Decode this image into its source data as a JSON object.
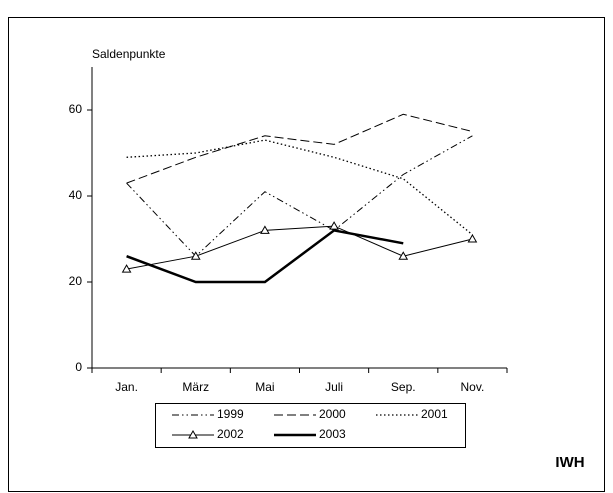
{
  "chart_data": {
    "type": "line",
    "y_label": "Saldenpunkte",
    "categories": [
      "Jan.",
      "März",
      "Mai",
      "Juli",
      "Sep.",
      "Nov."
    ],
    "ylim": [
      0,
      70
    ],
    "yticks": [
      0,
      20,
      40,
      60
    ],
    "series": [
      {
        "name": "1999",
        "color": "#000000",
        "line_style": "dash-dot-dot",
        "values": [
          43,
          26,
          41,
          32,
          45,
          54
        ]
      },
      {
        "name": "2000",
        "color": "#000000",
        "line_style": "dashed",
        "values": [
          43,
          49,
          54,
          52,
          59,
          55
        ]
      },
      {
        "name": "2001",
        "color": "#000000",
        "line_style": "dotted",
        "values": [
          49,
          50,
          53,
          49,
          44,
          31
        ]
      },
      {
        "name": "2002",
        "color": "#000000",
        "line_style": "solid",
        "marker": "triangle",
        "values": [
          23,
          26,
          32,
          33,
          26,
          30
        ]
      },
      {
        "name": "2003",
        "color": "#000000",
        "line_style": "thick",
        "values": [
          26,
          20,
          20,
          32,
          29,
          null
        ]
      }
    ],
    "legend": "bottom",
    "annotation": "IWH"
  }
}
